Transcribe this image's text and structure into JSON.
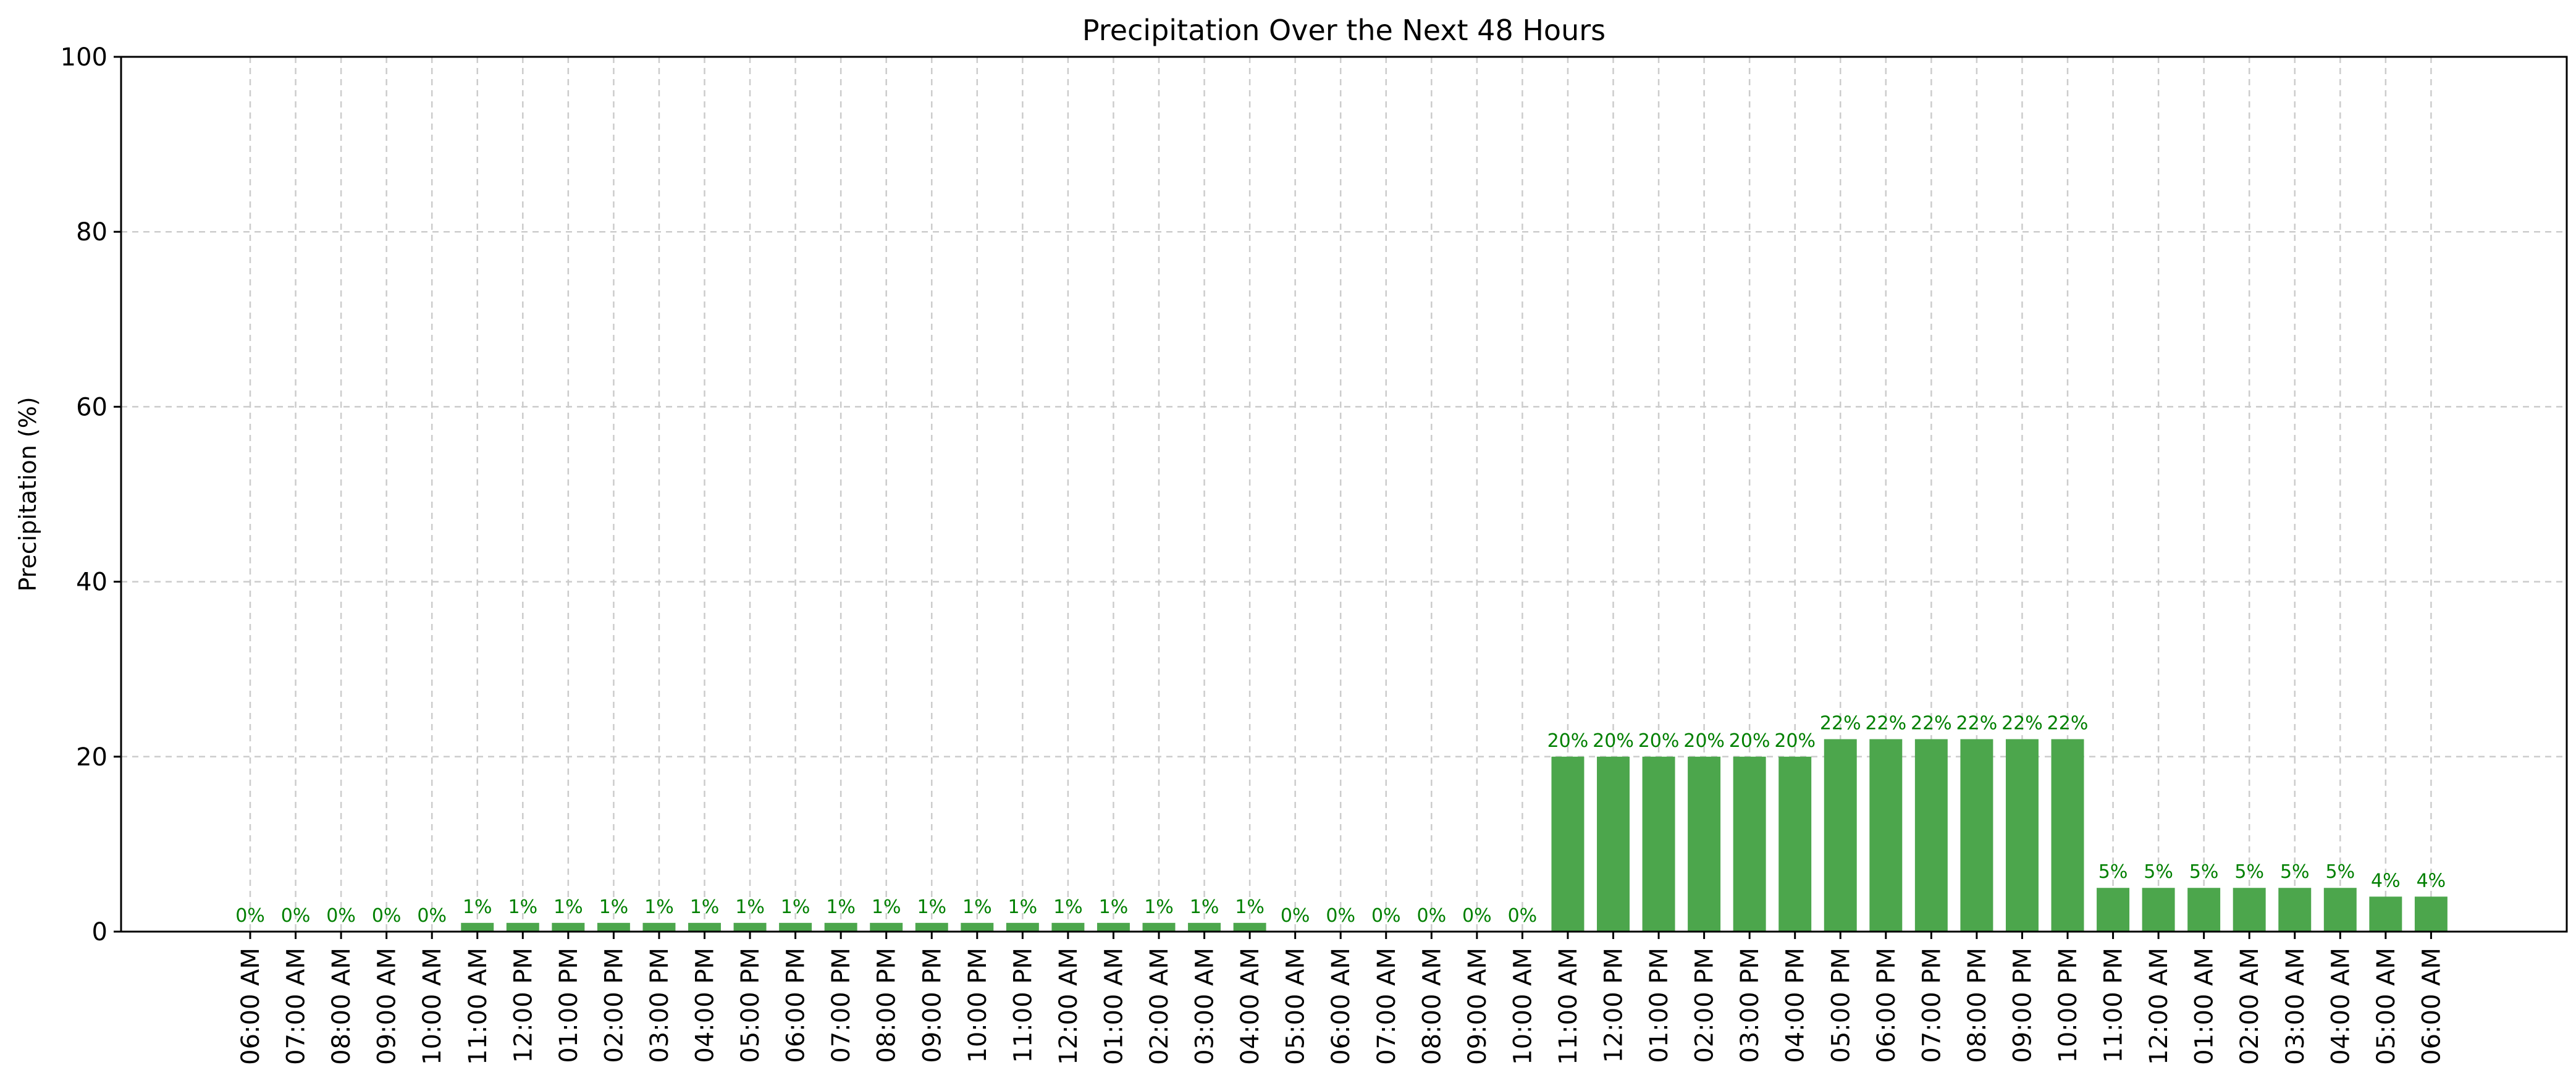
{
  "chart_data": {
    "type": "bar",
    "title": "Precipitation Over the Next 48 Hours",
    "xlabel": "",
    "ylabel": "Precipitation (%)",
    "ylim": [
      0,
      100
    ],
    "yticks": [
      0,
      20,
      40,
      60,
      80,
      100
    ],
    "grid": true,
    "bar_color": "#4ca64c",
    "label_color": "#008000",
    "categories": [
      "06:00 AM",
      "07:00 AM",
      "08:00 AM",
      "09:00 AM",
      "10:00 AM",
      "11:00 AM",
      "12:00 PM",
      "01:00 PM",
      "02:00 PM",
      "03:00 PM",
      "04:00 PM",
      "05:00 PM",
      "06:00 PM",
      "07:00 PM",
      "08:00 PM",
      "09:00 PM",
      "10:00 PM",
      "11:00 PM",
      "12:00 AM",
      "01:00 AM",
      "02:00 AM",
      "03:00 AM",
      "04:00 AM",
      "05:00 AM",
      "06:00 AM",
      "07:00 AM",
      "08:00 AM",
      "09:00 AM",
      "10:00 AM",
      "11:00 AM",
      "12:00 PM",
      "01:00 PM",
      "02:00 PM",
      "03:00 PM",
      "04:00 PM",
      "05:00 PM",
      "06:00 PM",
      "07:00 PM",
      "08:00 PM",
      "09:00 PM",
      "10:00 PM",
      "11:00 PM",
      "12:00 AM",
      "01:00 AM",
      "02:00 AM",
      "03:00 AM",
      "04:00 AM",
      "05:00 AM",
      "06:00 AM"
    ],
    "values": [
      0,
      0,
      0,
      0,
      0,
      1,
      1,
      1,
      1,
      1,
      1,
      1,
      1,
      1,
      1,
      1,
      1,
      1,
      1,
      1,
      1,
      1,
      1,
      0,
      0,
      0,
      0,
      0,
      0,
      20,
      20,
      20,
      20,
      20,
      20,
      22,
      22,
      22,
      22,
      22,
      22,
      5,
      5,
      5,
      5,
      5,
      5,
      4,
      4
    ],
    "data_labels": [
      "0%",
      "0%",
      "0%",
      "0%",
      "0%",
      "1%",
      "1%",
      "1%",
      "1%",
      "1%",
      "1%",
      "1%",
      "1%",
      "1%",
      "1%",
      "1%",
      "1%",
      "1%",
      "1%",
      "1%",
      "1%",
      "1%",
      "1%",
      "0%",
      "0%",
      "0%",
      "0%",
      "0%",
      "0%",
      "20%",
      "20%",
      "20%",
      "20%",
      "20%",
      "20%",
      "22%",
      "22%",
      "22%",
      "22%",
      "22%",
      "22%",
      "5%",
      "5%",
      "5%",
      "5%",
      "5%",
      "5%",
      "4%",
      "4%"
    ]
  }
}
